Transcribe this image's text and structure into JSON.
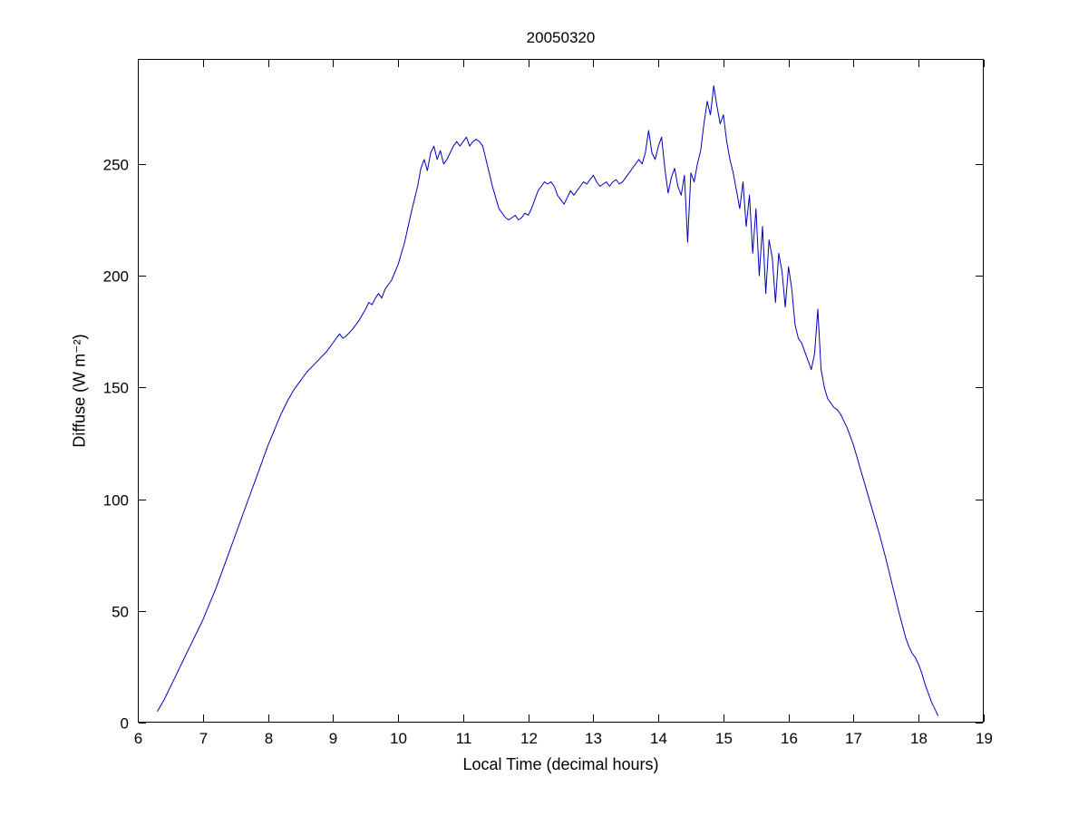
{
  "chart_data": {
    "type": "line",
    "title": "20050320",
    "xlabel": "Local Time (decimal hours)",
    "ylabel": "Diffuse (W m⁻²)",
    "xlim": [
      6,
      19
    ],
    "ylim": [
      0,
      297
    ],
    "xticks": [
      6,
      7,
      8,
      9,
      10,
      11,
      12,
      13,
      14,
      15,
      16,
      17,
      18,
      19
    ],
    "yticks": [
      0,
      50,
      100,
      150,
      200,
      250
    ],
    "grid": false,
    "legend": null,
    "line_color": "#0000BB",
    "frame_color": "#000000",
    "background": "#ffffff",
    "points": [
      [
        6.3,
        5
      ],
      [
        6.4,
        10
      ],
      [
        6.5,
        16
      ],
      [
        6.6,
        22
      ],
      [
        6.7,
        28
      ],
      [
        6.8,
        34
      ],
      [
        6.9,
        40
      ],
      [
        7.0,
        46
      ],
      [
        7.1,
        53
      ],
      [
        7.2,
        60
      ],
      [
        7.3,
        68
      ],
      [
        7.4,
        76
      ],
      [
        7.5,
        84
      ],
      [
        7.6,
        92
      ],
      [
        7.7,
        100
      ],
      [
        7.8,
        108
      ],
      [
        7.9,
        116
      ],
      [
        8.0,
        124
      ],
      [
        8.1,
        131
      ],
      [
        8.2,
        138
      ],
      [
        8.3,
        144
      ],
      [
        8.4,
        149
      ],
      [
        8.5,
        153
      ],
      [
        8.55,
        155
      ],
      [
        8.6,
        157
      ],
      [
        8.7,
        160
      ],
      [
        8.8,
        163
      ],
      [
        8.9,
        166
      ],
      [
        9.0,
        170
      ],
      [
        9.05,
        172
      ],
      [
        9.1,
        174
      ],
      [
        9.15,
        172
      ],
      [
        9.2,
        173
      ],
      [
        9.3,
        176
      ],
      [
        9.4,
        180
      ],
      [
        9.5,
        185
      ],
      [
        9.55,
        188
      ],
      [
        9.6,
        187
      ],
      [
        9.65,
        190
      ],
      [
        9.7,
        192
      ],
      [
        9.75,
        190
      ],
      [
        9.8,
        194
      ],
      [
        9.9,
        198
      ],
      [
        10.0,
        205
      ],
      [
        10.1,
        215
      ],
      [
        10.2,
        228
      ],
      [
        10.3,
        240
      ],
      [
        10.35,
        248
      ],
      [
        10.4,
        252
      ],
      [
        10.45,
        247
      ],
      [
        10.5,
        255
      ],
      [
        10.55,
        258
      ],
      [
        10.6,
        252
      ],
      [
        10.65,
        256
      ],
      [
        10.7,
        250
      ],
      [
        10.75,
        252
      ],
      [
        10.8,
        255
      ],
      [
        10.85,
        258
      ],
      [
        10.9,
        260
      ],
      [
        10.95,
        258
      ],
      [
        11.0,
        260
      ],
      [
        11.05,
        262
      ],
      [
        11.1,
        258
      ],
      [
        11.15,
        260
      ],
      [
        11.2,
        261
      ],
      [
        11.25,
        260
      ],
      [
        11.3,
        258
      ],
      [
        11.35,
        252
      ],
      [
        11.4,
        246
      ],
      [
        11.45,
        240
      ],
      [
        11.5,
        235
      ],
      [
        11.55,
        230
      ],
      [
        11.6,
        228
      ],
      [
        11.65,
        226
      ],
      [
        11.7,
        225
      ],
      [
        11.75,
        226
      ],
      [
        11.8,
        227
      ],
      [
        11.85,
        225
      ],
      [
        11.9,
        226
      ],
      [
        11.95,
        228
      ],
      [
        12.0,
        227
      ],
      [
        12.05,
        230
      ],
      [
        12.1,
        234
      ],
      [
        12.15,
        238
      ],
      [
        12.2,
        240
      ],
      [
        12.25,
        242
      ],
      [
        12.3,
        241
      ],
      [
        12.35,
        242
      ],
      [
        12.4,
        240
      ],
      [
        12.45,
        236
      ],
      [
        12.5,
        234
      ],
      [
        12.55,
        232
      ],
      [
        12.6,
        235
      ],
      [
        12.65,
        238
      ],
      [
        12.7,
        236
      ],
      [
        12.75,
        238
      ],
      [
        12.8,
        240
      ],
      [
        12.85,
        242
      ],
      [
        12.9,
        241
      ],
      [
        12.95,
        243
      ],
      [
        13.0,
        245
      ],
      [
        13.05,
        242
      ],
      [
        13.1,
        240
      ],
      [
        13.15,
        241
      ],
      [
        13.2,
        242
      ],
      [
        13.25,
        240
      ],
      [
        13.3,
        242
      ],
      [
        13.35,
        243
      ],
      [
        13.4,
        241
      ],
      [
        13.45,
        242
      ],
      [
        13.5,
        244
      ],
      [
        13.55,
        246
      ],
      [
        13.6,
        248
      ],
      [
        13.65,
        250
      ],
      [
        13.7,
        252
      ],
      [
        13.75,
        250
      ],
      [
        13.8,
        255
      ],
      [
        13.85,
        265
      ],
      [
        13.9,
        255
      ],
      [
        13.95,
        252
      ],
      [
        14.0,
        258
      ],
      [
        14.05,
        262
      ],
      [
        14.1,
        248
      ],
      [
        14.15,
        237
      ],
      [
        14.2,
        244
      ],
      [
        14.25,
        248
      ],
      [
        14.3,
        240
      ],
      [
        14.35,
        236
      ],
      [
        14.4,
        245
      ],
      [
        14.45,
        215
      ],
      [
        14.5,
        246
      ],
      [
        14.55,
        242
      ],
      [
        14.6,
        250
      ],
      [
        14.65,
        256
      ],
      [
        14.7,
        268
      ],
      [
        14.75,
        278
      ],
      [
        14.8,
        272
      ],
      [
        14.85,
        285
      ],
      [
        14.9,
        276
      ],
      [
        14.95,
        268
      ],
      [
        15.0,
        272
      ],
      [
        15.05,
        260
      ],
      [
        15.1,
        252
      ],
      [
        15.15,
        246
      ],
      [
        15.2,
        238
      ],
      [
        15.25,
        230
      ],
      [
        15.3,
        242
      ],
      [
        15.35,
        222
      ],
      [
        15.4,
        236
      ],
      [
        15.45,
        210
      ],
      [
        15.5,
        230
      ],
      [
        15.55,
        200
      ],
      [
        15.6,
        222
      ],
      [
        15.65,
        192
      ],
      [
        15.7,
        216
      ],
      [
        15.75,
        208
      ],
      [
        15.8,
        188
      ],
      [
        15.85,
        210
      ],
      [
        15.9,
        202
      ],
      [
        15.95,
        186
      ],
      [
        16.0,
        204
      ],
      [
        16.05,
        194
      ],
      [
        16.1,
        178
      ],
      [
        16.15,
        172
      ],
      [
        16.2,
        170
      ],
      [
        16.25,
        166
      ],
      [
        16.3,
        162
      ],
      [
        16.35,
        158
      ],
      [
        16.4,
        165
      ],
      [
        16.45,
        185
      ],
      [
        16.5,
        158
      ],
      [
        16.55,
        150
      ],
      [
        16.6,
        145
      ],
      [
        16.65,
        143
      ],
      [
        16.7,
        141
      ],
      [
        16.75,
        140
      ],
      [
        16.8,
        138
      ],
      [
        16.85,
        135
      ],
      [
        16.9,
        132
      ],
      [
        16.95,
        128
      ],
      [
        17.0,
        124
      ],
      [
        17.1,
        114
      ],
      [
        17.2,
        104
      ],
      [
        17.3,
        94
      ],
      [
        17.4,
        84
      ],
      [
        17.5,
        73
      ],
      [
        17.6,
        61
      ],
      [
        17.7,
        49
      ],
      [
        17.8,
        38
      ],
      [
        17.85,
        34
      ],
      [
        17.9,
        31
      ],
      [
        17.95,
        29
      ],
      [
        18.0,
        26
      ],
      [
        18.05,
        22
      ],
      [
        18.1,
        17
      ],
      [
        18.15,
        13
      ],
      [
        18.2,
        9
      ],
      [
        18.25,
        6
      ],
      [
        18.3,
        3
      ]
    ]
  }
}
